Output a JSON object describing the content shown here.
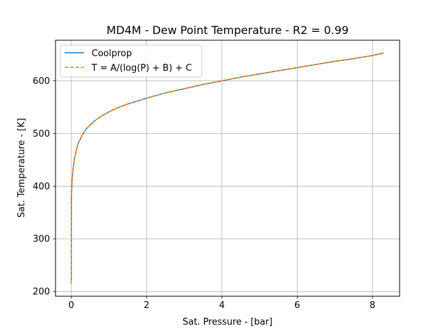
{
  "chart_data": {
    "type": "line",
    "title": "MD4M - Dew Point Temperature - R2 = 0.99",
    "xlabel": "Sat. Pressure - [bar]",
    "ylabel": "Sat. Temperature - [K]",
    "xlim": [
      -0.42,
      8.72
    ],
    "ylim": [
      191,
      677
    ],
    "xticks": [
      0,
      2,
      4,
      6,
      8
    ],
    "yticks": [
      200,
      300,
      400,
      500,
      600
    ],
    "xtick_labels": [
      "0",
      "2",
      "4",
      "6",
      "8"
    ],
    "ytick_labels": [
      "200",
      "300",
      "400",
      "500",
      "600"
    ],
    "grid": true,
    "legend_position": "top-left",
    "series": [
      {
        "name": "Coolprop",
        "style": "solid",
        "color": "#1f77b4",
        "x": [
          0.0,
          0.0003,
          0.001,
          0.003,
          0.008,
          0.02,
          0.04,
          0.07,
          0.1,
          0.15,
          0.2,
          0.3,
          0.4,
          0.6,
          0.8,
          1.0,
          1.2,
          1.5,
          2.0,
          2.5,
          3.0,
          3.5,
          4.0,
          4.5,
          5.0,
          5.5,
          6.0,
          6.5,
          7.0,
          7.5,
          8.0,
          8.3
        ],
        "y": [
          215,
          300,
          340,
          370,
          390,
          410,
          428,
          446,
          458,
          473,
          484,
          498,
          509,
          523,
          533,
          541,
          548,
          556,
          567,
          577,
          585,
          593,
          600,
          607,
          613,
          619,
          625,
          631,
          637,
          642,
          648,
          653
        ]
      },
      {
        "name": "T = A/(log(P) + B) + C",
        "style": "dashed",
        "color": "#ff7f0e",
        "x": [
          0.0,
          0.0003,
          0.001,
          0.003,
          0.008,
          0.02,
          0.04,
          0.07,
          0.1,
          0.15,
          0.2,
          0.3,
          0.4,
          0.6,
          0.8,
          1.0,
          1.2,
          1.5,
          2.0,
          2.5,
          3.0,
          3.5,
          4.0,
          4.5,
          5.0,
          5.5,
          6.0,
          6.5,
          7.0,
          7.5,
          8.0,
          8.3
        ],
        "y": [
          215,
          300,
          340,
          370,
          390,
          410,
          428,
          446,
          458,
          473,
          484,
          498,
          509,
          523,
          533,
          541,
          548,
          556,
          567,
          577,
          585,
          593,
          600,
          607,
          613,
          619,
          625,
          631,
          637,
          642,
          648,
          653
        ]
      }
    ]
  }
}
